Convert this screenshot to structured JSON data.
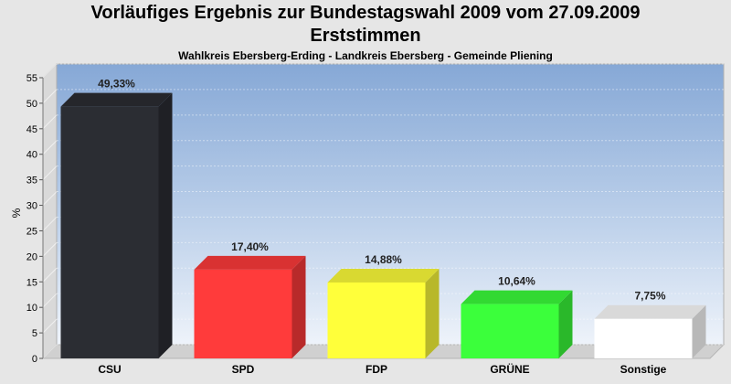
{
  "header": {
    "title_line1": "Vorläufiges Ergebnis zur Bundestagswahl 2009 vom 27.09.2009",
    "title_line2": "Erststimmen",
    "subtitle": "Wahlkreis Ebersberg-Erding - Landkreis Ebersberg - Gemeinde Pliening"
  },
  "chart_data": {
    "type": "bar",
    "title": "Vorläufiges Ergebnis zur Bundestagswahl 2009 vom 27.09.2009",
    "subtitle": "Erststimmen",
    "ylabel": "%",
    "xlabel": "",
    "ylim": [
      0,
      55
    ],
    "yticks": [
      0,
      5,
      10,
      15,
      20,
      25,
      30,
      35,
      40,
      45,
      50,
      55
    ],
    "grid": true,
    "categories": [
      "CSU",
      "SPD",
      "FDP",
      "GRÜNE",
      "Sonstige"
    ],
    "values": [
      49.33,
      17.4,
      14.88,
      10.64,
      7.75
    ],
    "value_labels": [
      "49,33%",
      "17,40%",
      "14,88%",
      "10,64%",
      "7,75%"
    ],
    "colors": [
      "#2b2d33",
      "#ff3b3b",
      "#ffff3a",
      "#3bff3b",
      "#ffffff"
    ]
  }
}
